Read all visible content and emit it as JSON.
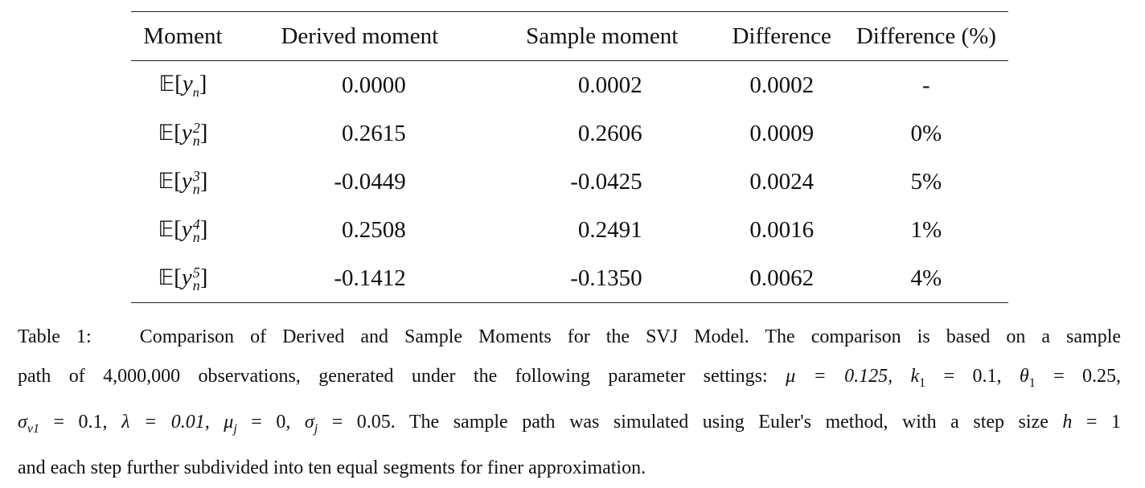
{
  "table": {
    "headers": [
      "Moment",
      "Derived moment",
      "Sample moment",
      "Difference",
      "Difference (%)"
    ],
    "rows": [
      {
        "moment_power": "",
        "derived": "0.0000",
        "sample": "0.0002",
        "difference": "0.0002",
        "difference_pct": "-"
      },
      {
        "moment_power": "2",
        "derived": "0.2615",
        "sample": "0.2606",
        "difference": "0.0009",
        "difference_pct": "0%"
      },
      {
        "moment_power": "3",
        "derived": "-0.0449",
        "sample": "-0.0425",
        "difference": "0.0024",
        "difference_pct": "5%"
      },
      {
        "moment_power": "4",
        "derived": "0.2508",
        "sample": "0.2491",
        "difference": "0.0016",
        "difference_pct": "1%"
      },
      {
        "moment_power": "5",
        "derived": "-0.1412",
        "sample": "-0.1350",
        "difference": "0.0062",
        "difference_pct": "4%"
      }
    ],
    "moment_symbol": "𝔼",
    "moment_var": "y",
    "moment_sub": "n"
  },
  "caption": {
    "label": "Table 1:",
    "line1": "Comparison of Derived and Sample Moments for the SVJ Model. The comparison is based on a sample",
    "line2_a": "path of 4,000,000 observations, generated under the following parameter settings:",
    "mu": "μ = 0.125,",
    "k1": "k",
    "k1_val": "= 0.1,",
    "theta1": "θ",
    "theta1_val": "= 0.25,",
    "sigma_v1": "σ",
    "sigma_v1_sub": "v1",
    "sigma_v1_val": "= 0.1,",
    "lambda": "λ = 0.01,",
    "mu_j": "μ",
    "mu_j_val": "= 0,",
    "sigma_j": "σ",
    "sigma_j_val": "= 0.05.",
    "line3_b": "The sample path was simulated using Euler's method, with a step size",
    "h": "h",
    "h_val": "= 1",
    "line4": "and each step further subdivided into ten equal segments for finer approximation."
  }
}
